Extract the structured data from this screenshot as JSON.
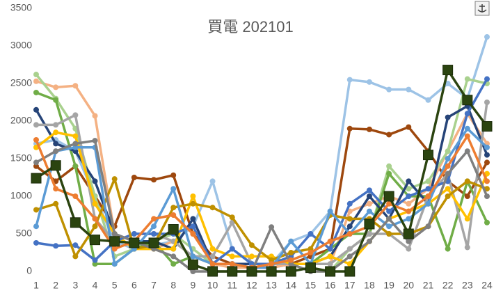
{
  "chart_data": {
    "type": "line",
    "title": "買電 202101",
    "categories": [
      "1",
      "2",
      "3",
      "4",
      "5",
      "6",
      "7",
      "8",
      "9",
      "10",
      "11",
      "12",
      "13",
      "14",
      "15",
      "16",
      "17",
      "18",
      "19",
      "20",
      "21",
      "22",
      "23",
      "24"
    ],
    "ylim": [
      0,
      3500
    ],
    "yticks": [
      0,
      500,
      1000,
      1500,
      2000,
      2500,
      3000,
      3500
    ],
    "grid": false,
    "series": [
      {
        "color": "#9dc3e6",
        "marker": "circle",
        "values": [
          1700,
          1750,
          1600,
          1000,
          400,
          300,
          350,
          400,
          600,
          1200,
          300,
          100,
          100,
          400,
          500,
          800,
          2550,
          2520,
          2420,
          2420,
          2280,
          2500,
          2300,
          3120
        ]
      },
      {
        "color": "#9e480e",
        "marker": "circle",
        "values": [
          1400,
          1200,
          1400,
          1000,
          600,
          1250,
          1220,
          1280,
          500,
          200,
          100,
          50,
          50,
          100,
          200,
          300,
          1900,
          1890,
          1820,
          1920,
          1600,
          1200,
          1000,
          1450
        ]
      },
      {
        "color": "#f4b183",
        "marker": "circle",
        "values": [
          2530,
          2450,
          2470,
          2070,
          500,
          300,
          300,
          400,
          200,
          100,
          50,
          50,
          50,
          100,
          100,
          100,
          800,
          900,
          1000,
          900,
          1100,
          1600,
          2100,
          1700
        ]
      },
      {
        "color": "#a9d18e",
        "marker": "circle",
        "values": [
          2620,
          2300,
          1900,
          1000,
          200,
          300,
          400,
          500,
          300,
          100,
          100,
          100,
          100,
          100,
          0,
          0,
          300,
          500,
          1400,
          1100,
          1200,
          1600,
          2560,
          2500
        ]
      },
      {
        "color": "#70ad47",
        "marker": "circle",
        "values": [
          2380,
          2280,
          1400,
          100,
          100,
          300,
          400,
          100,
          200,
          100,
          100,
          100,
          100,
          100,
          100,
          300,
          500,
          500,
          1300,
          1000,
          1000,
          300,
          1200,
          650
        ]
      },
      {
        "color": "#264478",
        "marker": "circle",
        "values": [
          2150,
          1700,
          1600,
          1200,
          500,
          400,
          400,
          300,
          700,
          100,
          100,
          100,
          100,
          100,
          100,
          200,
          600,
          1000,
          700,
          1200,
          900,
          2050,
          2200,
          1550
        ]
      },
      {
        "color": "#a5a5a5",
        "marker": "circle",
        "values": [
          1950,
          1950,
          2080,
          700,
          400,
          500,
          500,
          400,
          200,
          200,
          650,
          100,
          100,
          100,
          100,
          100,
          300,
          500,
          500,
          300,
          1000,
          1300,
          320,
          2250
        ]
      },
      {
        "color": "#ffc000",
        "marker": "circle",
        "values": [
          1650,
          1850,
          1800,
          900,
          500,
          300,
          300,
          300,
          1000,
          300,
          200,
          200,
          200,
          100,
          100,
          200,
          100,
          400,
          700,
          800,
          900,
          1100,
          700,
          1300
        ]
      },
      {
        "color": "#4472c4",
        "marker": "circle",
        "values": [
          380,
          340,
          350,
          150,
          400,
          500,
          500,
          500,
          600,
          100,
          300,
          100,
          100,
          200,
          500,
          300,
          900,
          1080,
          800,
          1000,
          1100,
          1200,
          2100,
          2560
        ]
      },
      {
        "color": "#bf9000",
        "marker": "circle",
        "values": [
          820,
          900,
          200,
          600,
          1230,
          300,
          350,
          850,
          900,
          850,
          720,
          350,
          150,
          250,
          300,
          750,
          700,
          700,
          500,
          500,
          600,
          1000,
          1200,
          1100
        ]
      },
      {
        "color": "#5b9bd5",
        "marker": "circle",
        "values": [
          600,
          1600,
          1650,
          1650,
          100,
          300,
          600,
          1100,
          200,
          100,
          100,
          50,
          50,
          400,
          100,
          800,
          500,
          800,
          600,
          700,
          900,
          1500,
          1900,
          1650
        ]
      },
      {
        "color": "#7f7f7f",
        "marker": "circle",
        "values": [
          1450,
          1600,
          1700,
          1740,
          500,
          400,
          300,
          200,
          0,
          0,
          0,
          0,
          590,
          100,
          0,
          0,
          200,
          400,
          700,
          400,
          600,
          1300,
          1600,
          1000
        ]
      },
      {
        "color": "#ed7d31",
        "marker": "circle",
        "values": [
          1750,
          1100,
          1000,
          700,
          300,
          400,
          700,
          750,
          500,
          100,
          100,
          50,
          100,
          150,
          250,
          400,
          500,
          600,
          900,
          800,
          1000,
          1400,
          1800,
          1200
        ]
      },
      {
        "color": "#2b4410",
        "marker": "square",
        "values": [
          1240,
          1410,
          650,
          420,
          400,
          380,
          380,
          560,
          90,
          0,
          0,
          0,
          0,
          0,
          50,
          0,
          0,
          630,
          1000,
          500,
          1550,
          2680,
          2280,
          1930
        ]
      }
    ]
  }
}
